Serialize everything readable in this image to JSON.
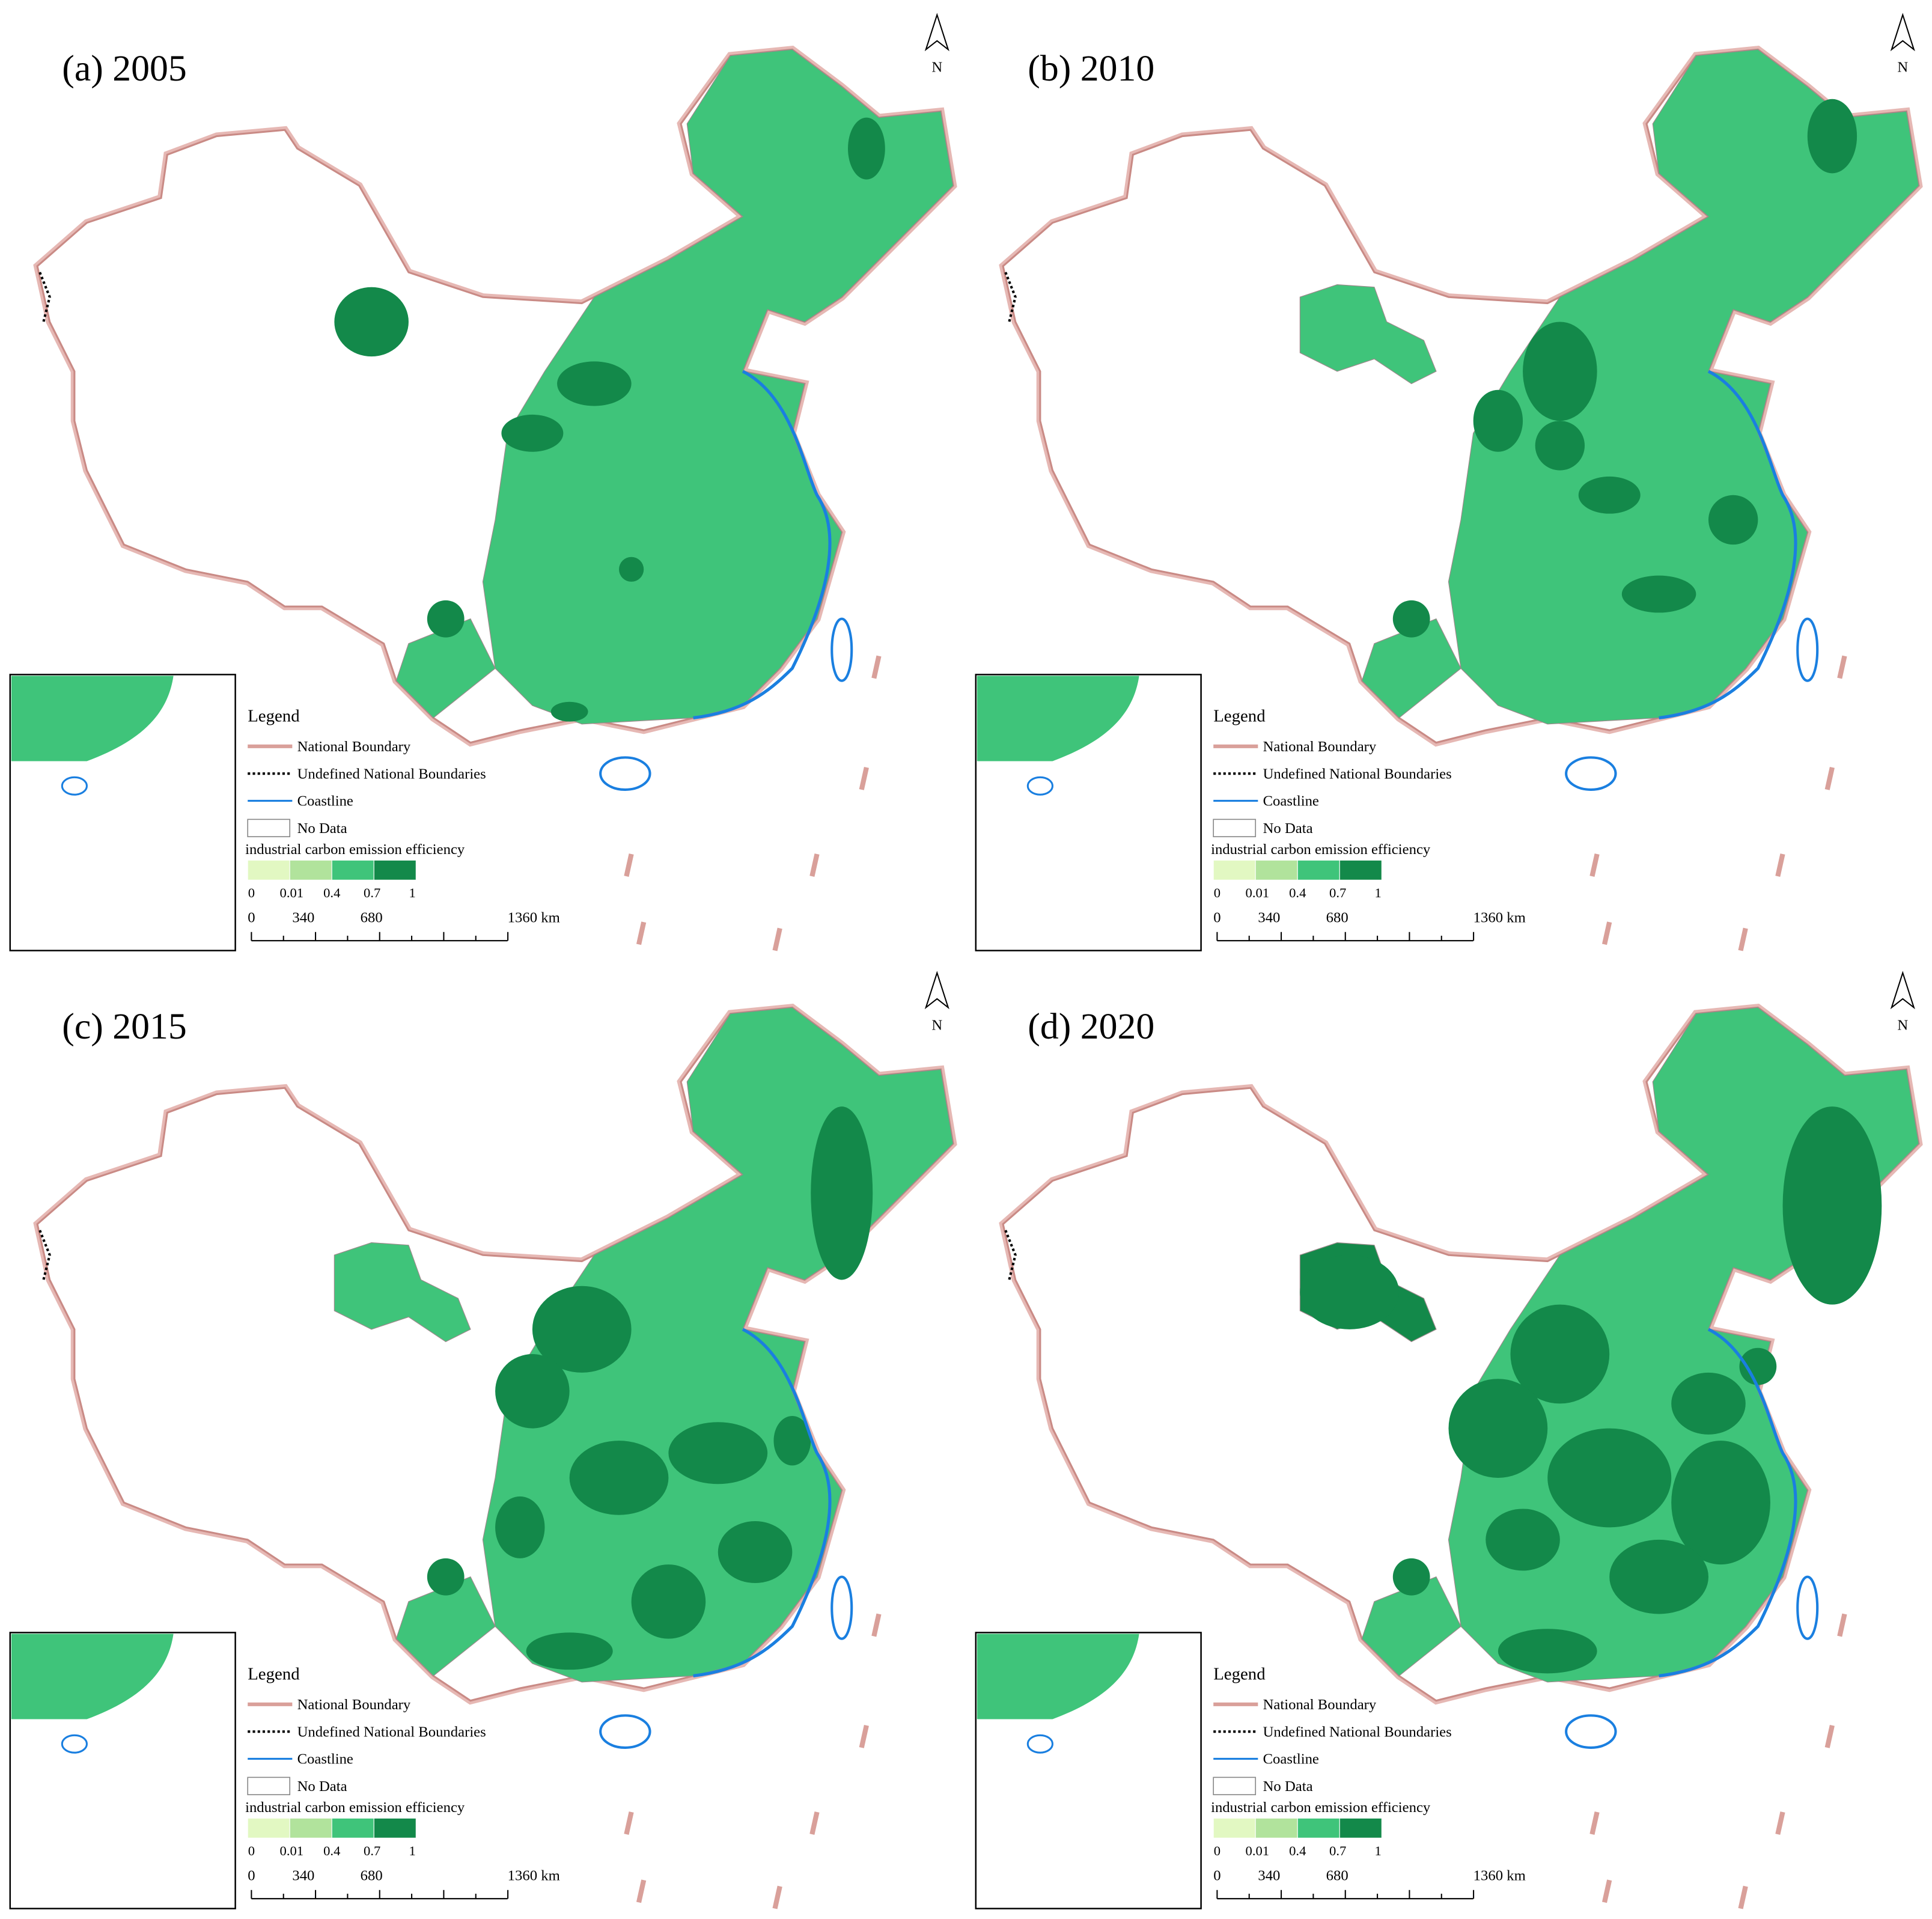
{
  "panels": [
    {
      "title": "(a) 2005"
    },
    {
      "title": "(b) 2010"
    },
    {
      "title": "(c) 2015"
    },
    {
      "title": "(d) 2020"
    }
  ],
  "north": "N",
  "legend": {
    "title": "Legend",
    "items": [
      "National Boundary",
      "Undefined National Boundaries",
      "Coastline",
      "No Data"
    ],
    "color_title": "industrial carbon emission efficiency",
    "class_colors": [
      "#e2f8c2",
      "#b1e39c",
      "#3fc47a",
      "#13894a"
    ],
    "breaks": [
      0,
      0.01,
      0.4,
      0.7,
      1
    ]
  },
  "scale_labels": [
    "0",
    "340",
    "680",
    "1360 km"
  ]
}
